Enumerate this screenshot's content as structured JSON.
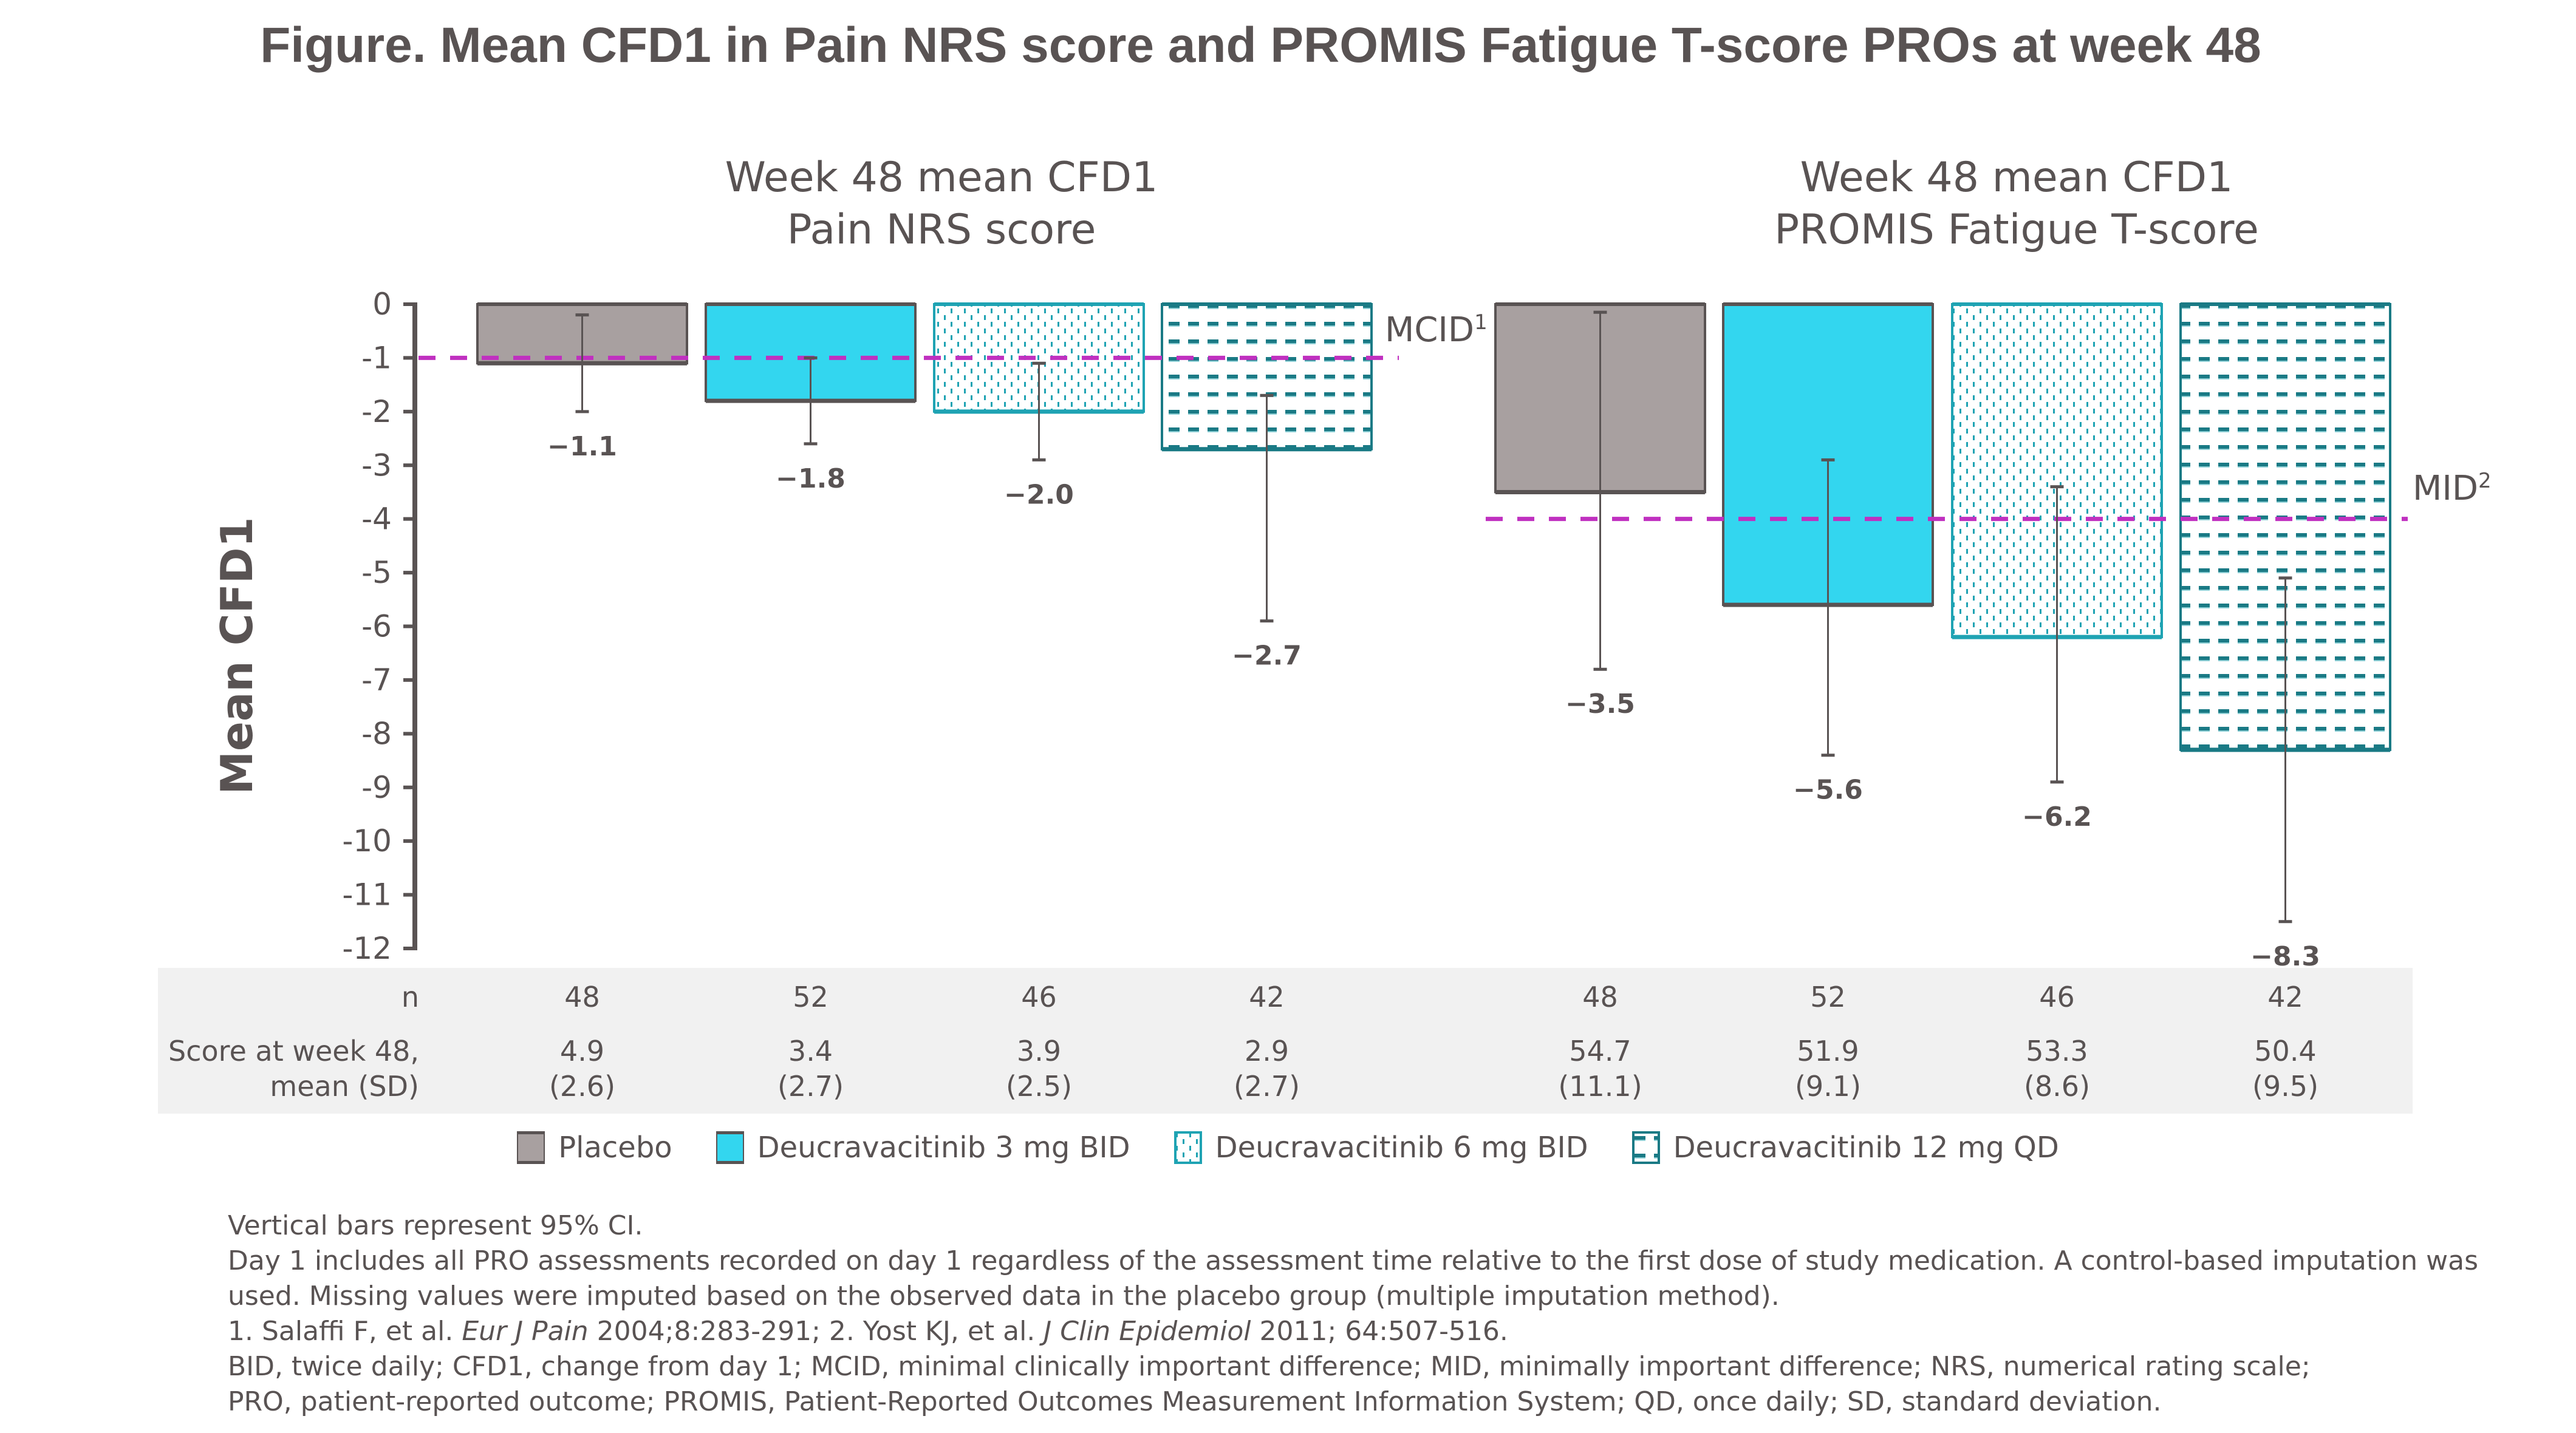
{
  "title": "Figure. Mean CFD1 in Pain NRS score and PROMIS Fatigue T-score PROs at week 48",
  "colors": {
    "text": "#595353",
    "placebo": "#a8a0a0",
    "deuc_3mg": "#33d6ef",
    "deuc_6mg_border": "#1fa3b3",
    "deuc_12mg": "#1a7a85",
    "threshold_line": "#c030c0",
    "table_bg": "#f1f1f1"
  },
  "legend": [
    {
      "key": "placebo",
      "label": "Placebo"
    },
    {
      "key": "deuc_3mg",
      "label": "Deucravacitinib 3 mg BID"
    },
    {
      "key": "deuc_6mg",
      "label": "Deucravacitinib 6 mg BID"
    },
    {
      "key": "deuc_12mg",
      "label": "Deucravacitinib 12 mg QD"
    }
  ],
  "table": {
    "row_labels": {
      "n": "n",
      "score_line1": "Score at week 48,",
      "score_line2": "mean (SD)"
    },
    "panels": [
      {
        "n": [
          "48",
          "52",
          "46",
          "42"
        ],
        "mean": [
          "4.9",
          "3.4",
          "3.9",
          "2.9"
        ],
        "sd": [
          "(2.6)",
          "(2.7)",
          "(2.5)",
          "(2.7)"
        ]
      },
      {
        "n": [
          "48",
          "52",
          "46",
          "42"
        ],
        "mean": [
          "54.7",
          "51.9",
          "53.3",
          "50.4"
        ],
        "sd": [
          "(11.1)",
          "(9.1)",
          "(8.6)",
          "(9.5)"
        ]
      }
    ]
  },
  "footnotes": {
    "line1": "Vertical bars represent 95% CI.",
    "line2": "Day 1 includes all PRO assessments recorded on day 1 regardless of the assessment time relative to the first dose of study medication. A control-based imputation was",
    "line3": "used. Missing values were imputed based on the observed data in the placebo group (multiple imputation method).",
    "ref1_pre": "1. Salaffi F, et al. ",
    "ref1_journal": "Eur J Pain",
    "ref1_post": " 2004;8:283-291; 2. Yost KJ, et al. ",
    "ref2_journal": "J Clin Epidemiol",
    "ref2_post": " 2011; 64:507-516.",
    "abbrev1": "BID, twice daily; CFD1, change from day 1; MCID, minimal clinically important difference; MID, minimally important difference; NRS, numerical rating scale;",
    "abbrev2": "PRO, patient-reported outcome; PROMIS, Patient-Reported Outcomes Measurement Information System; QD, once daily; SD, standard deviation."
  },
  "chart_data": {
    "type": "bar",
    "ylabel": "Mean CFD1",
    "xlabel": "",
    "ylim": [
      -12,
      0
    ],
    "yticks": [
      0,
      -1,
      -2,
      -3,
      -4,
      -5,
      -6,
      -7,
      -8,
      -9,
      -10,
      -11,
      -12
    ],
    "ytick_labels": [
      "0",
      "-1",
      "-2",
      "-3",
      "-4",
      "-5",
      "-6",
      "-7",
      "-8",
      "-9",
      "-10",
      "-11",
      "-12"
    ],
    "grid": false,
    "legend_position": "bottom",
    "series_names": [
      "Placebo",
      "Deucravacitinib 3 mg BID",
      "Deucravacitinib 6 mg BID",
      "Deucravacitinib 12 mg QD"
    ],
    "panels": [
      {
        "title_line1": "Week 48 mean CFD1",
        "title_line2": "Pain NRS score",
        "values": [
          -1.1,
          -1.8,
          -2.0,
          -2.7
        ],
        "value_labels": [
          "−1.1",
          "−1.8",
          "−2.0",
          "−2.7"
        ],
        "ci_upper": [
          -0.2,
          -1.0,
          -1.1,
          -1.7
        ],
        "ci_lower": [
          -2.0,
          -2.6,
          -2.9,
          -5.9
        ],
        "threshold": {
          "label": "MCID",
          "sup": "1",
          "value": -1
        }
      },
      {
        "title_line1": "Week 48 mean CFD1",
        "title_line2": "PROMIS Fatigue T-score",
        "values": [
          -3.5,
          -5.6,
          -6.2,
          -8.3
        ],
        "value_labels": [
          "−3.5",
          "−5.6",
          "−6.2",
          "−8.3"
        ],
        "ci_upper": [
          -0.15,
          -2.9,
          -3.4,
          -5.1
        ],
        "ci_lower": [
          -6.8,
          -8.4,
          -8.9,
          -11.5
        ],
        "threshold": {
          "label": "MID",
          "sup": "2",
          "value": -4
        }
      }
    ]
  }
}
